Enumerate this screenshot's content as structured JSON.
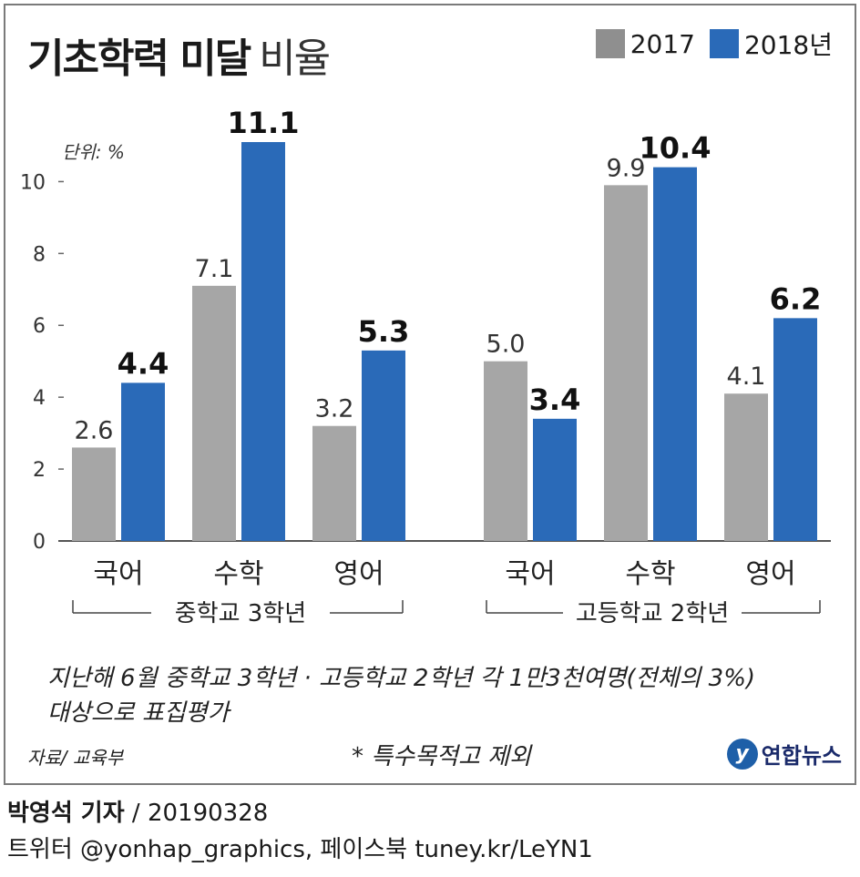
{
  "title": {
    "bold": "기초학력 미달",
    "light": "비율"
  },
  "colors": {
    "s2017": "#a6a6a6",
    "s2018": "#2a6ab8",
    "legend2017": "#8f8f8f"
  },
  "legend": {
    "label_2017": "2017",
    "label_2018": "2018년"
  },
  "chart_data": {
    "type": "bar",
    "unit_label": "단위: %",
    "ylim": [
      0,
      11.1
    ],
    "yticks": [
      "0",
      "2",
      "4",
      "6",
      "8",
      "10"
    ],
    "grid": false,
    "legend_position": "top-right",
    "categories": [
      "국어",
      "수학",
      "영어",
      "국어",
      "수학",
      "영어"
    ],
    "groups": [
      "중학교 3학년",
      "고등학교 2학년"
    ],
    "series": [
      {
        "name": "2017",
        "values": [
          2.6,
          7.1,
          3.2,
          5.0,
          9.9,
          4.1
        ],
        "labels": [
          "2.6",
          "7.1",
          "3.2",
          "5.0",
          "9.9",
          "4.1"
        ]
      },
      {
        "name": "2018년",
        "values": [
          4.4,
          11.1,
          5.3,
          3.4,
          10.4,
          6.2
        ],
        "labels": [
          "4.4",
          "11.1",
          "5.3",
          "3.4",
          "10.4",
          "6.2"
        ]
      }
    ]
  },
  "note": {
    "line1": "지난해 6월 중학교 3학년 · 고등학교 2학년 각 1만3천여명(전체의 3%)",
    "line2": "대상으로 표집평가"
  },
  "source": "자료/ 교육부",
  "exception": "* 특수목적고 제외",
  "logo": {
    "mark": "y",
    "text": "연합뉴스"
  },
  "footer": {
    "reporter": "박영석 기자",
    "date": " / 20190328",
    "social": "트위터 @yonhap_graphics, 페이스북 tuney.kr/LeYN1"
  }
}
